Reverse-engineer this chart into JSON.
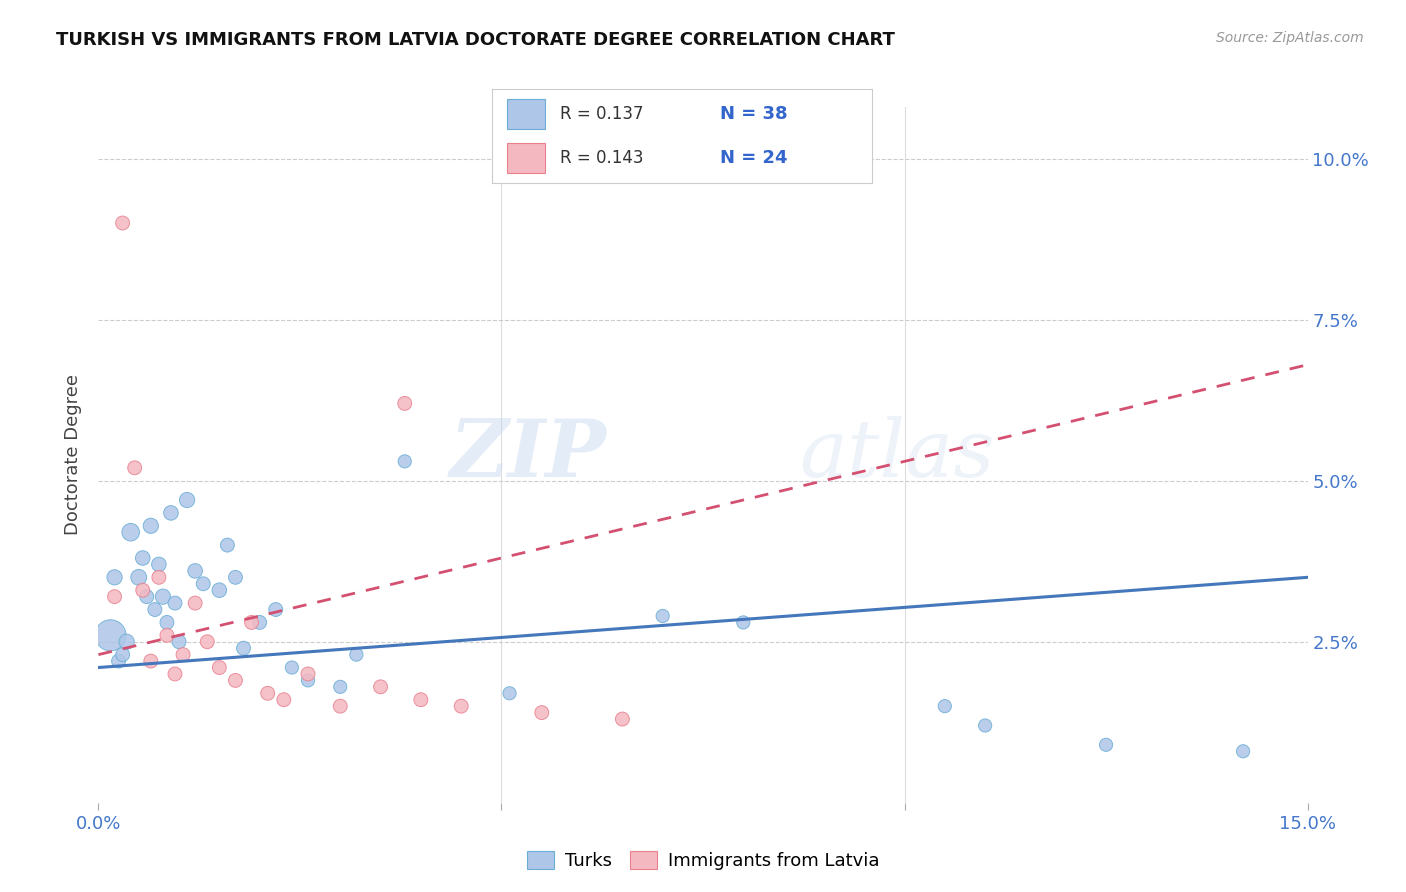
{
  "title": "TURKISH VS IMMIGRANTS FROM LATVIA DOCTORATE DEGREE CORRELATION CHART",
  "source": "Source: ZipAtlas.com",
  "ylabel": "Doctorate Degree",
  "ytick_values": [
    2.5,
    5.0,
    7.5,
    10.0
  ],
  "xmin": 0.0,
  "xmax": 15.0,
  "ymin": 0.0,
  "ymax": 10.8,
  "legend_r1": "R = 0.137",
  "legend_n1": "N = 38",
  "legend_r2": "R = 0.143",
  "legend_n2": "N = 24",
  "turks_color": "#aec6e8",
  "turks_edge_color": "#6aaed6",
  "latvia_color": "#f4b8c1",
  "latvia_edge_color": "#e8808e",
  "trend_blue": "#4477bb",
  "trend_pink": "#d45070",
  "watermark_zip": "ZIP",
  "watermark_atlas": "atlas",
  "blue_line_x": [
    0.0,
    15.0
  ],
  "blue_line_y": [
    2.1,
    3.5
  ],
  "pink_line_x": [
    0.0,
    15.0
  ],
  "pink_line_y": [
    2.3,
    6.8
  ],
  "turks_x": [
    0.15,
    0.2,
    0.25,
    0.3,
    0.35,
    0.4,
    0.5,
    0.55,
    0.6,
    0.65,
    0.7,
    0.75,
    0.8,
    0.85,
    0.9,
    0.95,
    1.0,
    1.1,
    1.2,
    1.3,
    1.5,
    1.6,
    1.7,
    1.8,
    2.0,
    2.2,
    2.4,
    2.6,
    3.0,
    3.2,
    3.8,
    5.1,
    7.0,
    8.0,
    10.5,
    11.0,
    12.5,
    14.2
  ],
  "turks_y": [
    2.6,
    3.5,
    2.2,
    2.3,
    2.5,
    4.2,
    3.5,
    3.8,
    3.2,
    4.3,
    3.0,
    3.7,
    3.2,
    2.8,
    4.5,
    3.1,
    2.5,
    4.7,
    3.6,
    3.4,
    3.3,
    4.0,
    3.5,
    2.4,
    2.8,
    3.0,
    2.1,
    1.9,
    1.8,
    2.3,
    5.3,
    1.7,
    2.9,
    2.8,
    1.5,
    1.2,
    0.9,
    0.8
  ],
  "turks_size": [
    500,
    120,
    100,
    100,
    120,
    160,
    130,
    110,
    100,
    120,
    100,
    110,
    120,
    100,
    110,
    100,
    100,
    120,
    110,
    100,
    110,
    100,
    100,
    100,
    100,
    100,
    90,
    90,
    90,
    90,
    90,
    90,
    90,
    90,
    90,
    90,
    90,
    90
  ],
  "latvia_x": [
    0.2,
    0.3,
    0.45,
    0.55,
    0.65,
    0.75,
    0.85,
    0.95,
    1.05,
    1.2,
    1.35,
    1.5,
    1.7,
    1.9,
    2.1,
    2.3,
    2.6,
    3.0,
    3.5,
    3.8,
    4.0,
    4.5,
    5.5,
    6.5
  ],
  "latvia_y": [
    3.2,
    9.0,
    5.2,
    3.3,
    2.2,
    3.5,
    2.6,
    2.0,
    2.3,
    3.1,
    2.5,
    2.1,
    1.9,
    2.8,
    1.7,
    1.6,
    2.0,
    1.5,
    1.8,
    6.2,
    1.6,
    1.5,
    1.4,
    1.3
  ],
  "latvia_size": [
    100,
    100,
    100,
    100,
    100,
    100,
    100,
    100,
    100,
    100,
    100,
    100,
    100,
    100,
    100,
    100,
    100,
    100,
    100,
    100,
    100,
    100,
    100,
    100
  ]
}
